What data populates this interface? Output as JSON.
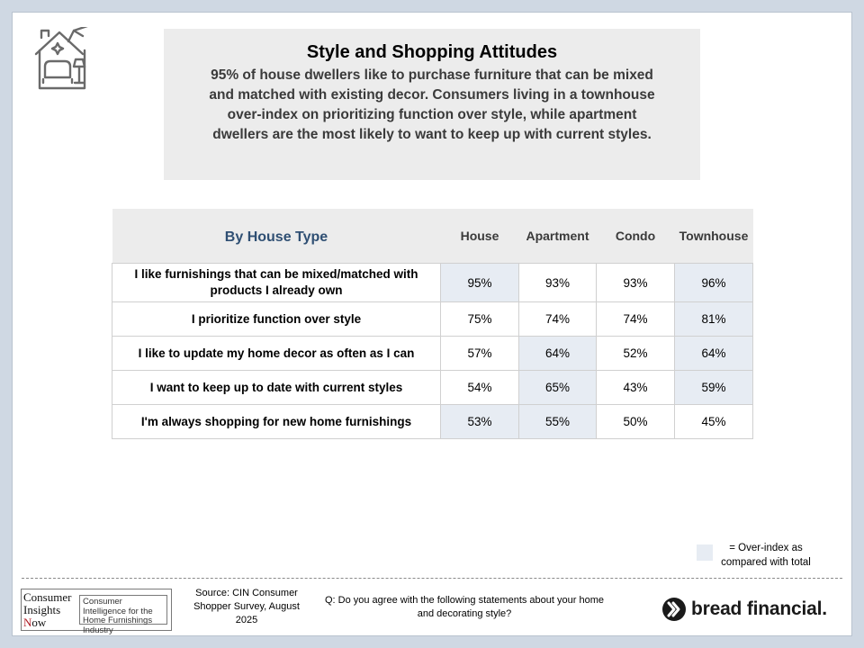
{
  "header": {
    "title": "Style and Shopping Attitudes",
    "subtitle": "95% of house dwellers like to purchase furniture that can be mixed and matched with existing decor. Consumers living in a townhouse over-index on prioritizing function over style, while apartment dwellers are the most likely to want to keep up with current styles."
  },
  "table": {
    "group_label": "By House Type",
    "columns": [
      "House",
      "Apartment",
      "Condo",
      "Townhouse"
    ],
    "rows": [
      {
        "label": "I like furnishings that can be mixed/matched with products I already own",
        "values": [
          "95%",
          "93%",
          "93%",
          "96%"
        ],
        "highlight": [
          true,
          false,
          false,
          true
        ]
      },
      {
        "label": "I prioritize function over style",
        "values": [
          "75%",
          "74%",
          "74%",
          "81%"
        ],
        "highlight": [
          false,
          false,
          false,
          true
        ]
      },
      {
        "label": "I like to update my home decor as often as I can",
        "values": [
          "57%",
          "64%",
          "52%",
          "64%"
        ],
        "highlight": [
          false,
          true,
          false,
          true
        ]
      },
      {
        "label": "I want to keep up to date with current styles",
        "values": [
          "54%",
          "65%",
          "43%",
          "59%"
        ],
        "highlight": [
          false,
          true,
          false,
          true
        ]
      },
      {
        "label": "I'm always shopping for new home furnishings",
        "values": [
          "53%",
          "55%",
          "50%",
          "45%"
        ],
        "highlight": [
          true,
          true,
          false,
          false
        ]
      }
    ]
  },
  "legend": {
    "text": "= Over-index as compared with total",
    "color": "#e7ecf3"
  },
  "footer": {
    "source": "Source: CIN Consumer Shopper Survey, August 2025",
    "question": "Q: Do you agree with the following statements about your home and decorating style?",
    "cin_logo": {
      "line1": "Consumer",
      "line2": "Insights",
      "line3_initial": "N",
      "line3_rest": "ow",
      "tagline": "Consumer Intelligence for the Home Furnishings Industry"
    },
    "brand": "bread financial."
  },
  "icons": {
    "header_icon": "house-decor-icon",
    "brand_icon": "bread-financial-mark-icon"
  },
  "colors": {
    "highlight": "#e7ecf3",
    "group_label": "#2f4f73",
    "header_bg": "#ececec"
  }
}
